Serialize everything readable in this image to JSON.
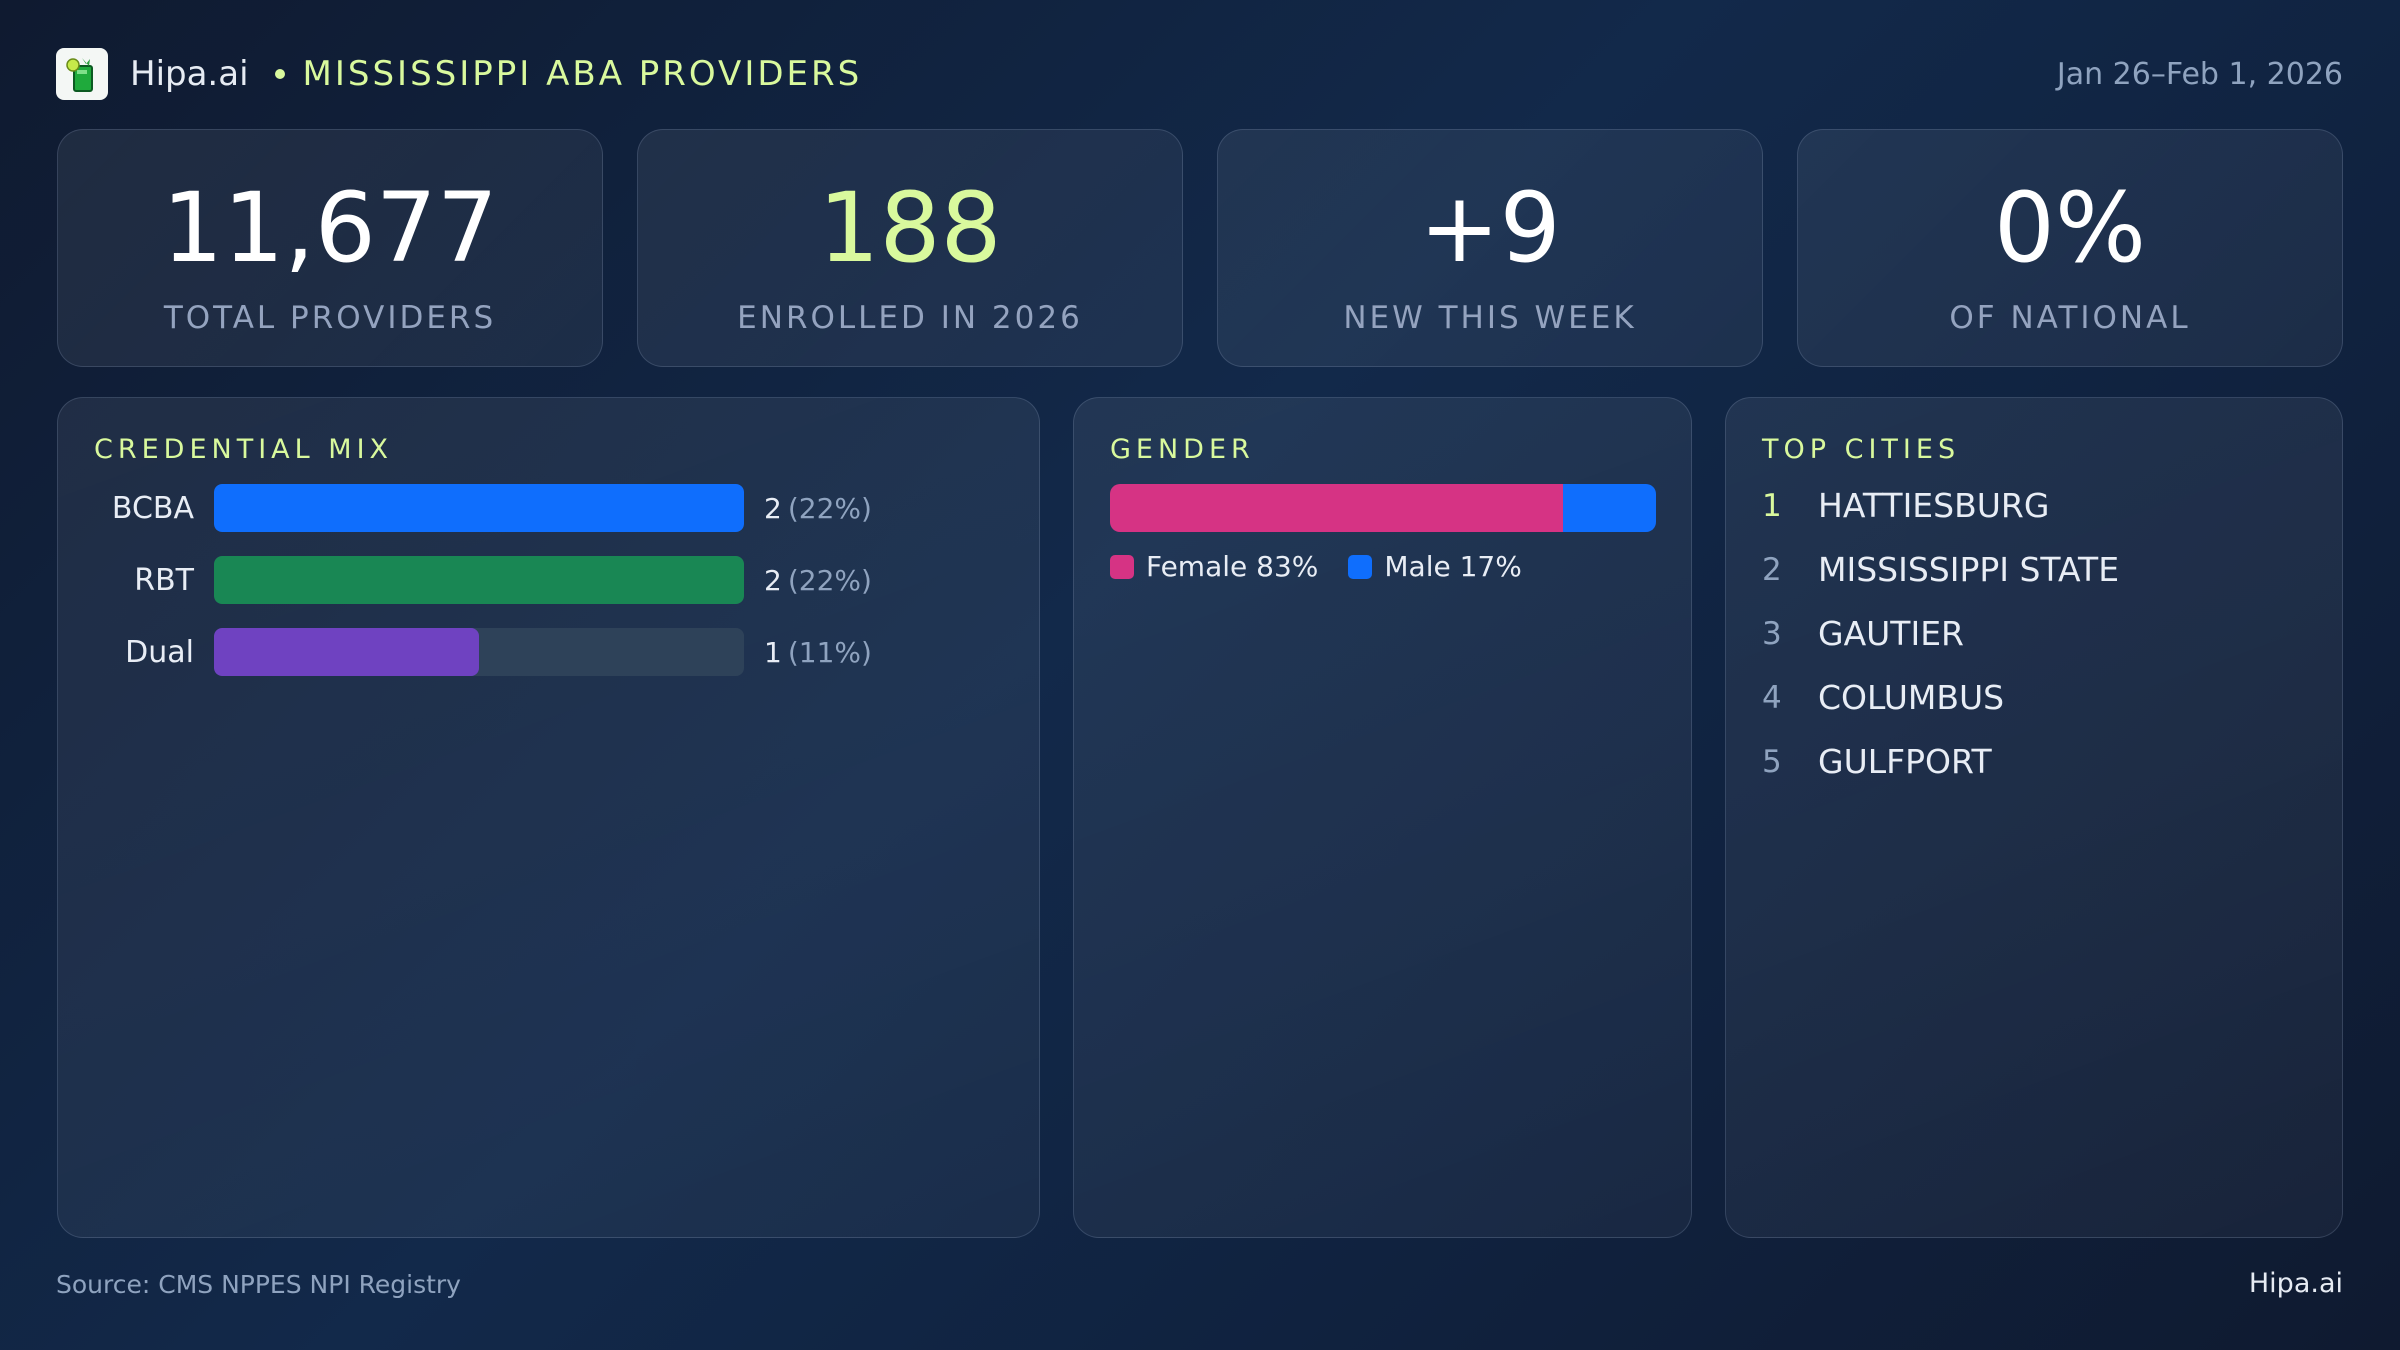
{
  "header": {
    "brand": "Hipa.ai",
    "separator": "•",
    "title": "MISSISSIPPI ABA PROVIDERS",
    "date_range": "Jan 26–Feb 1, 2026",
    "logo_icon": "mojito-glass-icon"
  },
  "stats": [
    {
      "value": "11,677",
      "label": "TOTAL PROVIDERS",
      "accent": false
    },
    {
      "value": "188",
      "label": "ENROLLED IN 2026",
      "accent": true
    },
    {
      "value": "+9",
      "label": "NEW THIS WEEK",
      "accent": false
    },
    {
      "value": "0%",
      "label": "OF NATIONAL",
      "accent": false
    }
  ],
  "credential_mix": {
    "title": "CREDENTIAL MIX",
    "rows": [
      {
        "label": "BCBA",
        "count": "2",
        "pct": "(22%)",
        "fill": 1.0,
        "color": "#0f6efd"
      },
      {
        "label": "RBT",
        "count": "2",
        "pct": "(22%)",
        "fill": 1.0,
        "color": "#198754"
      },
      {
        "label": "Dual",
        "count": "1",
        "pct": "(11%)",
        "fill": 0.5,
        "color": "#6f42c1"
      }
    ]
  },
  "gender": {
    "title": "GENDER",
    "segments": [
      {
        "label": "Female 83%",
        "value": 83,
        "color": "#d63384"
      },
      {
        "label": "Male 17%",
        "value": 17,
        "color": "#0f6efd"
      }
    ]
  },
  "top_cities": {
    "title": "TOP CITIES",
    "items": [
      {
        "rank": "1",
        "name": "HATTIESBURG"
      },
      {
        "rank": "2",
        "name": "MISSISSIPPI STATE"
      },
      {
        "rank": "3",
        "name": "GAUTIER"
      },
      {
        "rank": "4",
        "name": "COLUMBUS"
      },
      {
        "rank": "5",
        "name": "GULFPORT"
      }
    ]
  },
  "footer": {
    "source": "Source: CMS NPPES NPI Registry",
    "brand": "Hipa.ai"
  },
  "colors": {
    "accent": "#d9f99d",
    "muted": "#8fa3bf",
    "bcba": "#0f6efd",
    "rbt": "#198754",
    "dual": "#6f42c1",
    "female": "#d63384",
    "male": "#0f6efd"
  }
}
